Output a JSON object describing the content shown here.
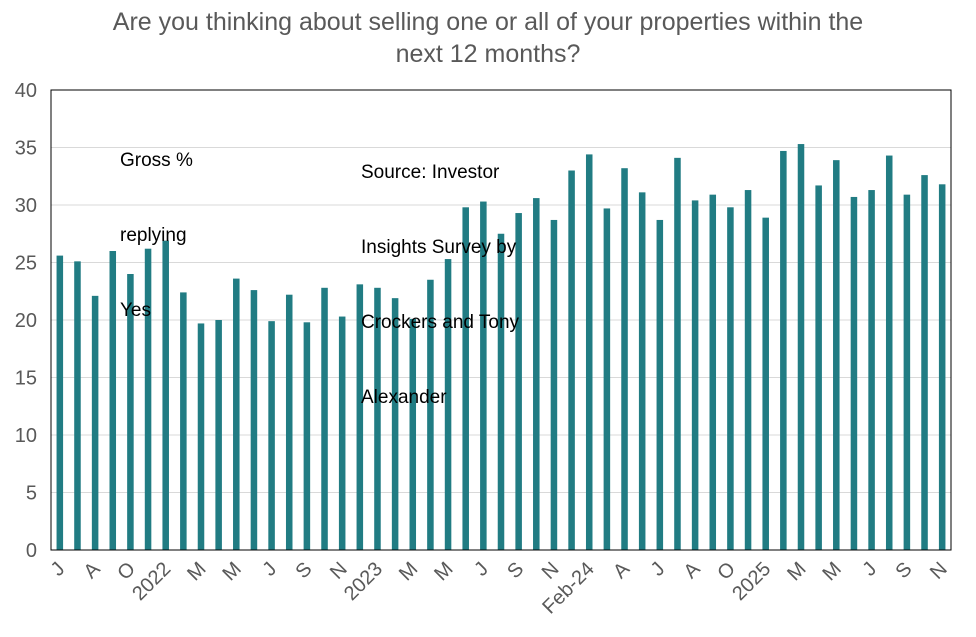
{
  "chart_data": {
    "type": "bar",
    "title_lines": [
      "Are you thinking about selling one or all of your properties within the",
      "next 12 months?"
    ],
    "xlabel": "",
    "ylabel": "",
    "ylim": [
      0,
      40
    ],
    "yticks": [
      0,
      5,
      10,
      15,
      20,
      25,
      30,
      35,
      40
    ],
    "grid": true,
    "bar_color": "#217C83",
    "annotations": {
      "series_note": [
        "Gross %",
        "replying",
        "Yes"
      ],
      "source_note": [
        "Source: Investor",
        "Insights Survey by",
        "Crockers and Tony",
        "Alexander"
      ]
    },
    "categories": [
      "J",
      "",
      "A",
      "",
      "O",
      "",
      "2022",
      "",
      "M",
      "",
      "M",
      "",
      "J",
      "",
      "S",
      "",
      "N",
      "",
      "2023",
      "",
      "M",
      "",
      "M",
      "",
      "J",
      "",
      "S",
      "",
      "N",
      "",
      "Feb-24",
      "",
      "A",
      "",
      "J",
      "",
      "A",
      "",
      "O",
      "",
      "2025",
      "",
      "M",
      "",
      "M",
      "",
      "J",
      "",
      "S",
      "",
      "N"
    ],
    "values": [
      25.6,
      25.1,
      22.1,
      26.0,
      24.0,
      26.2,
      26.9,
      22.4,
      19.7,
      20.0,
      23.6,
      22.6,
      19.9,
      22.2,
      19.8,
      22.8,
      20.3,
      23.1,
      22.8,
      21.9,
      20.1,
      23.5,
      25.3,
      29.8,
      30.3,
      27.5,
      29.3,
      30.6,
      28.7,
      33.0,
      34.4,
      29.7,
      33.2,
      31.1,
      28.7,
      34.1,
      30.4,
      30.9,
      29.8,
      31.3,
      28.9,
      34.7,
      35.3,
      31.7,
      33.9,
      30.7,
      31.3,
      34.3,
      30.9,
      32.6,
      31.8
    ]
  }
}
